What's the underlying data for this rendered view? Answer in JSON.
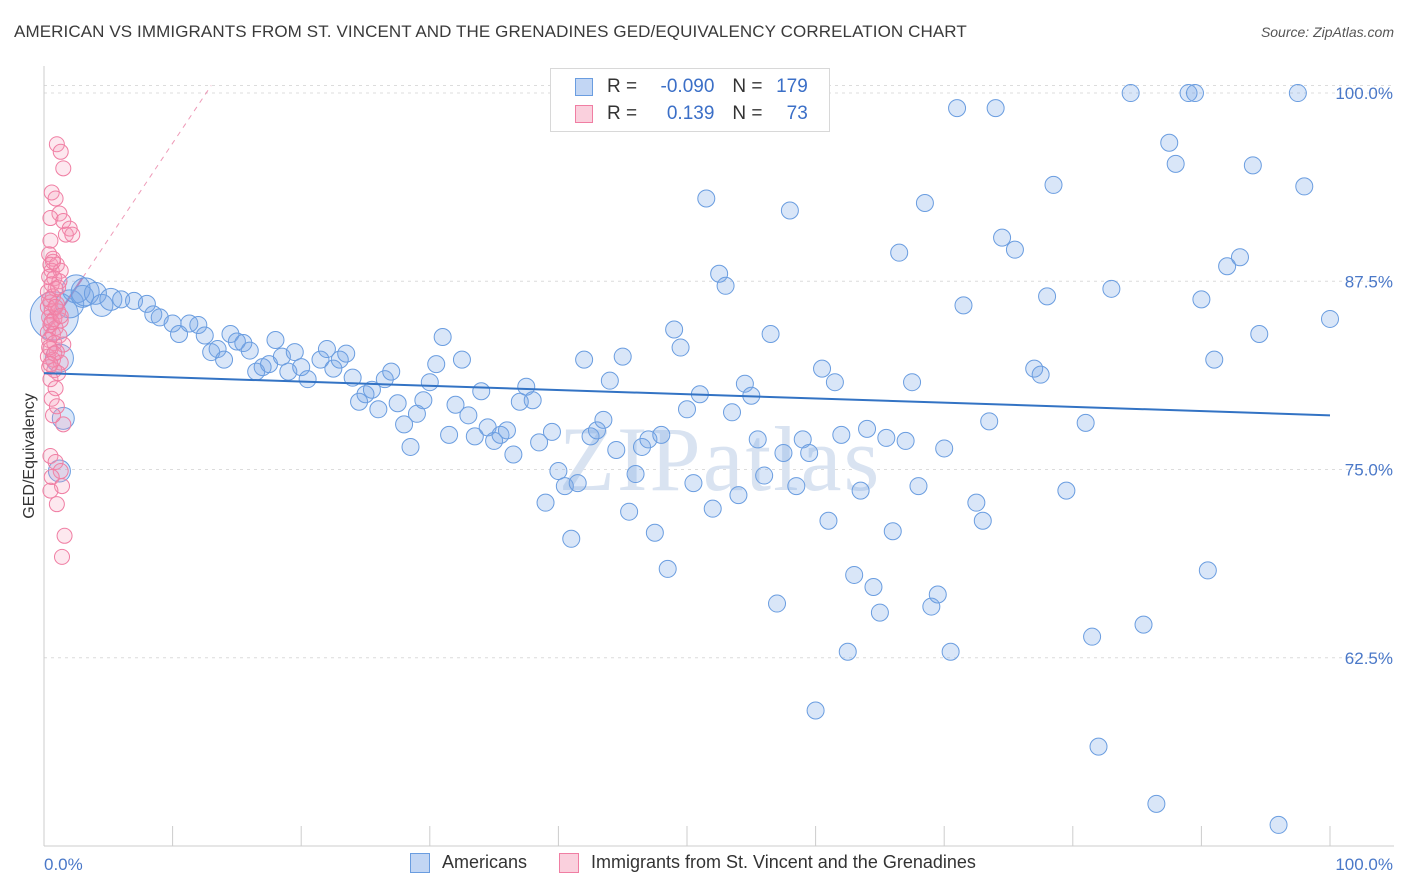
{
  "title": "AMERICAN VS IMMIGRANTS FROM ST. VINCENT AND THE GRENADINES GED/EQUIVALENCY CORRELATION CHART",
  "source": "Source: ZipAtlas.com",
  "colors": {
    "blue": "#6a9de0",
    "blue_fill": "rgba(120,165,230,0.28)",
    "pink": "#f07ea3",
    "pink_fill": "rgba(245,150,180,0.22)",
    "trend_blue": "#3373c4",
    "trend_pink": "#e8709a"
  },
  "legend": {
    "row1": {
      "r_label": "R =",
      "r_value": "-0.090",
      "n_label": "N =",
      "n_value": "179"
    },
    "row2": {
      "r_label": "R =",
      "r_value": "0.139",
      "n_label": "N =",
      "n_value": "73"
    }
  },
  "bottom_legend": {
    "americans": "Americans",
    "immigrants": "Immigrants from St. Vincent and the Grenadines"
  },
  "chart_data": {
    "type": "scatter",
    "title": "AMERICAN VS IMMIGRANTS FROM ST. VINCENT AND THE GRENADINES GED/EQUIVALENCY CORRELATION CHART",
    "xlabel": "",
    "ylabel": "GED/Equivalency",
    "xlim": [
      0,
      100
    ],
    "ylim": [
      50,
      101
    ],
    "x_tick_labels": [
      "0.0%",
      "100.0%"
    ],
    "y_ticks": [
      62.5,
      75.0,
      87.5,
      100.0
    ],
    "y_tick_labels": [
      "62.5%",
      "75.0%",
      "87.5%",
      "100.0%"
    ],
    "watermark": "ZIPatlas",
    "series": [
      {
        "name": "Americans",
        "trend": {
          "x": [
            0,
            100
          ],
          "y": [
            81.4,
            78.6
          ]
        },
        "points": [
          [
            0.8,
            85.2,
            7
          ],
          [
            1.2,
            82.4,
            3
          ],
          [
            1.5,
            78.4,
            2
          ],
          [
            1.2,
            74.9,
            2
          ],
          [
            2.0,
            86.0,
            3
          ],
          [
            2.5,
            87.0,
            3
          ],
          [
            3.0,
            86.5,
            2
          ],
          [
            3.2,
            86.8,
            3
          ],
          [
            4.0,
            86.7,
            2
          ],
          [
            4.5,
            85.9,
            2
          ],
          [
            5.2,
            86.3,
            2
          ],
          [
            6.0,
            86.3,
            1
          ],
          [
            7.0,
            86.2,
            1
          ],
          [
            8.0,
            86.0,
            1
          ],
          [
            8.5,
            85.3,
            1
          ],
          [
            9.0,
            85.1,
            1
          ],
          [
            10.0,
            84.7,
            1
          ],
          [
            10.5,
            84.0,
            1
          ],
          [
            11.3,
            84.7,
            1
          ],
          [
            12.0,
            84.6,
            1
          ],
          [
            12.5,
            83.9,
            1
          ],
          [
            13.0,
            82.8,
            1
          ],
          [
            13.5,
            83.0,
            1
          ],
          [
            14.0,
            82.3,
            1
          ],
          [
            14.5,
            84.0,
            1
          ],
          [
            15.0,
            83.5,
            1
          ],
          [
            15.5,
            83.4,
            1
          ],
          [
            16.0,
            82.9,
            1
          ],
          [
            16.5,
            81.5,
            1
          ],
          [
            17.0,
            81.8,
            1
          ],
          [
            17.5,
            82.0,
            1
          ],
          [
            18.0,
            83.6,
            1
          ],
          [
            18.5,
            82.5,
            1
          ],
          [
            19.0,
            81.5,
            1
          ],
          [
            19.5,
            82.8,
            1
          ],
          [
            20.0,
            81.8,
            1
          ],
          [
            20.5,
            81.0,
            1
          ],
          [
            21.5,
            82.3,
            1
          ],
          [
            22.0,
            83.0,
            1
          ],
          [
            22.5,
            81.7,
            1
          ],
          [
            23.0,
            82.3,
            1
          ],
          [
            23.5,
            82.7,
            1
          ],
          [
            24.0,
            81.1,
            1
          ],
          [
            24.5,
            79.5,
            1
          ],
          [
            25.0,
            80.0,
            1
          ],
          [
            25.5,
            80.3,
            1
          ],
          [
            26.0,
            79.0,
            1
          ],
          [
            26.5,
            81.0,
            1
          ],
          [
            27.0,
            81.5,
            1
          ],
          [
            27.5,
            79.4,
            1
          ],
          [
            28.0,
            78.0,
            1
          ],
          [
            28.5,
            76.5,
            1
          ],
          [
            29.0,
            78.7,
            1
          ],
          [
            29.5,
            79.6,
            1
          ],
          [
            30.0,
            80.8,
            1
          ],
          [
            30.5,
            82.0,
            1
          ],
          [
            31.0,
            83.8,
            1
          ],
          [
            31.5,
            77.3,
            1
          ],
          [
            32.0,
            79.3,
            1
          ],
          [
            32.5,
            82.3,
            1
          ],
          [
            33.0,
            78.6,
            1
          ],
          [
            33.5,
            77.2,
            1
          ],
          [
            34.0,
            80.2,
            1
          ],
          [
            34.5,
            77.8,
            1
          ],
          [
            35.0,
            76.9,
            1
          ],
          [
            35.5,
            77.3,
            1
          ],
          [
            36.0,
            77.6,
            1
          ],
          [
            36.5,
            76.0,
            1
          ],
          [
            37.0,
            79.5,
            1
          ],
          [
            37.5,
            80.5,
            1
          ],
          [
            38.0,
            79.6,
            1
          ],
          [
            38.5,
            76.8,
            1
          ],
          [
            39.0,
            72.8,
            1
          ],
          [
            39.5,
            77.5,
            1
          ],
          [
            40.0,
            74.9,
            1
          ],
          [
            40.5,
            73.9,
            1
          ],
          [
            41.0,
            70.4,
            1
          ],
          [
            41.5,
            74.1,
            1
          ],
          [
            42.0,
            82.3,
            1
          ],
          [
            42.5,
            77.2,
            1
          ],
          [
            43.0,
            77.6,
            1
          ],
          [
            43.5,
            78.3,
            1
          ],
          [
            44.0,
            80.9,
            1
          ],
          [
            44.5,
            76.3,
            1
          ],
          [
            45.0,
            82.5,
            1
          ],
          [
            45.5,
            72.2,
            1
          ],
          [
            46.0,
            74.7,
            1
          ],
          [
            46.5,
            76.5,
            1
          ],
          [
            47.0,
            77.0,
            1
          ],
          [
            47.5,
            70.8,
            1
          ],
          [
            48.0,
            77.3,
            1
          ],
          [
            48.5,
            68.4,
            1
          ],
          [
            49.0,
            84.3,
            1
          ],
          [
            49.5,
            83.1,
            1
          ],
          [
            50.0,
            79.0,
            1
          ],
          [
            50.5,
            74.1,
            1
          ],
          [
            51.0,
            80.0,
            1
          ],
          [
            51.5,
            93.0,
            1
          ],
          [
            52.0,
            72.4,
            1
          ],
          [
            52.5,
            88.0,
            1
          ],
          [
            53.0,
            87.2,
            1
          ],
          [
            53.5,
            78.8,
            1
          ],
          [
            54.0,
            73.3,
            1
          ],
          [
            54.5,
            80.7,
            1
          ],
          [
            55.0,
            79.9,
            1
          ],
          [
            55.5,
            77.0,
            1
          ],
          [
            56.0,
            74.6,
            1
          ],
          [
            56.5,
            84.0,
            1
          ],
          [
            57.0,
            66.1,
            1
          ],
          [
            57.5,
            76.1,
            1
          ],
          [
            58.0,
            92.2,
            1
          ],
          [
            58.5,
            73.9,
            1
          ],
          [
            59.0,
            77.0,
            1
          ],
          [
            59.5,
            76.1,
            1
          ],
          [
            60.0,
            59.0,
            1
          ],
          [
            60.5,
            81.7,
            1
          ],
          [
            61.0,
            71.6,
            1
          ],
          [
            61.5,
            80.8,
            1
          ],
          [
            62.0,
            77.3,
            1
          ],
          [
            62.5,
            62.9,
            1
          ],
          [
            63.0,
            68.0,
            1
          ],
          [
            63.5,
            73.6,
            1
          ],
          [
            64.0,
            77.7,
            1
          ],
          [
            64.5,
            67.2,
            1
          ],
          [
            65.0,
            65.5,
            1
          ],
          [
            65.5,
            77.1,
            1
          ],
          [
            66.0,
            70.9,
            1
          ],
          [
            66.5,
            89.4,
            1
          ],
          [
            67.0,
            76.9,
            1
          ],
          [
            67.5,
            80.8,
            1
          ],
          [
            68.0,
            73.9,
            1
          ],
          [
            68.5,
            92.7,
            1
          ],
          [
            69.0,
            65.9,
            1
          ],
          [
            69.5,
            66.7,
            1
          ],
          [
            70.0,
            76.4,
            1
          ],
          [
            70.5,
            62.9,
            1
          ],
          [
            71.0,
            99.0,
            1
          ],
          [
            71.5,
            85.9,
            1
          ],
          [
            72.5,
            72.8,
            1
          ],
          [
            73.0,
            71.6,
            1
          ],
          [
            73.5,
            78.2,
            1
          ],
          [
            74.0,
            99.0,
            1
          ],
          [
            74.5,
            90.4,
            1
          ],
          [
            75.5,
            89.6,
            1
          ],
          [
            77.0,
            81.7,
            1
          ],
          [
            77.5,
            81.3,
            1
          ],
          [
            78.0,
            86.5,
            1
          ],
          [
            78.5,
            93.9,
            1
          ],
          [
            79.5,
            73.6,
            1
          ],
          [
            81.0,
            78.1,
            1
          ],
          [
            81.5,
            63.9,
            1
          ],
          [
            82.0,
            56.6,
            1
          ],
          [
            83.0,
            87.0,
            1
          ],
          [
            84.5,
            100.0,
            1
          ],
          [
            85.5,
            64.7,
            1
          ],
          [
            86.5,
            52.8,
            1
          ],
          [
            87.5,
            96.7,
            1
          ],
          [
            88.0,
            95.3,
            1
          ],
          [
            89.0,
            100.0,
            1
          ],
          [
            89.5,
            100.0,
            1
          ],
          [
            90.0,
            86.3,
            1
          ],
          [
            90.5,
            68.3,
            1
          ],
          [
            91.0,
            82.3,
            1
          ],
          [
            92.0,
            88.5,
            1
          ],
          [
            93.0,
            89.1,
            1
          ],
          [
            94.0,
            95.2,
            1
          ],
          [
            94.5,
            84.0,
            1
          ],
          [
            96.0,
            51.4,
            1
          ],
          [
            97.5,
            100.0,
            1
          ],
          [
            98.0,
            93.8,
            1
          ],
          [
            100.0,
            85.0,
            1
          ]
        ]
      },
      {
        "name": "Immigrants from St. Vincent and the Grenadines",
        "trend": {
          "x": [
            0,
            13
          ],
          "y": [
            83.9,
            100.5
          ]
        },
        "points": [
          [
            1.0,
            96.6
          ],
          [
            1.3,
            96.1
          ],
          [
            1.5,
            95.0
          ],
          [
            0.6,
            93.4
          ],
          [
            0.9,
            93.0
          ],
          [
            1.2,
            92.0
          ],
          [
            0.5,
            91.7
          ],
          [
            1.5,
            91.5
          ],
          [
            2.0,
            91.0
          ],
          [
            1.7,
            90.6
          ],
          [
            2.2,
            90.6
          ],
          [
            0.4,
            89.3
          ],
          [
            0.7,
            89.0
          ],
          [
            0.5,
            88.6
          ],
          [
            1.0,
            88.6
          ],
          [
            0.6,
            88.2
          ],
          [
            1.3,
            88.2
          ],
          [
            0.4,
            87.8
          ],
          [
            0.8,
            87.7
          ],
          [
            1.2,
            87.5
          ],
          [
            0.6,
            87.3
          ],
          [
            0.9,
            87.0
          ],
          [
            0.3,
            86.8
          ],
          [
            0.7,
            86.5
          ],
          [
            0.5,
            86.1
          ],
          [
            1.0,
            86.0
          ],
          [
            0.3,
            85.8
          ],
          [
            0.6,
            85.5
          ],
          [
            1.1,
            85.5
          ],
          [
            0.4,
            85.1
          ],
          [
            0.8,
            85.0
          ],
          [
            1.3,
            84.9
          ],
          [
            0.5,
            84.6
          ],
          [
            0.9,
            84.4
          ],
          [
            0.3,
            84.1
          ],
          [
            0.7,
            84.0
          ],
          [
            1.2,
            83.9
          ],
          [
            0.4,
            83.6
          ],
          [
            0.8,
            83.4
          ],
          [
            1.5,
            83.3
          ],
          [
            0.5,
            83.0
          ],
          [
            1.0,
            82.8
          ],
          [
            0.3,
            82.5
          ],
          [
            0.7,
            82.3
          ],
          [
            1.3,
            82.1
          ],
          [
            0.4,
            81.8
          ],
          [
            0.8,
            81.6
          ],
          [
            1.1,
            81.4
          ],
          [
            0.5,
            81.0
          ],
          [
            0.9,
            80.4
          ],
          [
            0.6,
            79.7
          ],
          [
            1.0,
            79.2
          ],
          [
            1.5,
            78.0
          ],
          [
            0.5,
            75.9
          ],
          [
            0.9,
            75.5
          ],
          [
            1.3,
            74.9
          ],
          [
            0.6,
            74.5
          ],
          [
            1.4,
            73.9
          ],
          [
            0.5,
            73.6
          ],
          [
            1.0,
            72.7
          ],
          [
            1.6,
            70.6
          ],
          [
            1.4,
            69.2
          ],
          [
            0.4,
            86.3
          ],
          [
            0.9,
            85.8
          ],
          [
            0.6,
            84.8
          ],
          [
            0.4,
            83.1
          ],
          [
            0.8,
            82.7
          ],
          [
            0.5,
            82.0
          ],
          [
            1.1,
            87.1
          ],
          [
            0.7,
            88.8
          ],
          [
            0.5,
            90.2
          ],
          [
            1.3,
            85.2
          ],
          [
            0.7,
            78.6
          ]
        ]
      }
    ]
  }
}
